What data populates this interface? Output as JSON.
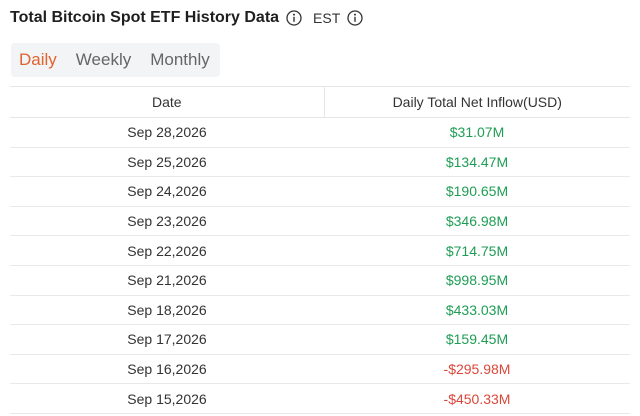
{
  "header": {
    "title": "Total Bitcoin Spot ETF History Data",
    "timezone": "EST"
  },
  "tabs": [
    {
      "label": "Daily",
      "active": true
    },
    {
      "label": "Weekly",
      "active": false
    },
    {
      "label": "Monthly",
      "active": false
    }
  ],
  "table": {
    "columns": [
      "Date",
      "Daily Total Net Inflow(USD)"
    ],
    "rows": [
      {
        "date": "Sep 28,2026",
        "inflow": "$31.07M",
        "sign": "positive"
      },
      {
        "date": "Sep 25,2026",
        "inflow": "$134.47M",
        "sign": "positive"
      },
      {
        "date": "Sep 24,2026",
        "inflow": "$190.65M",
        "sign": "positive"
      },
      {
        "date": "Sep 23,2026",
        "inflow": "$346.98M",
        "sign": "positive"
      },
      {
        "date": "Sep 22,2026",
        "inflow": "$714.75M",
        "sign": "positive"
      },
      {
        "date": "Sep 21,2026",
        "inflow": "$998.95M",
        "sign": "positive"
      },
      {
        "date": "Sep 18,2026",
        "inflow": "$433.03M",
        "sign": "positive"
      },
      {
        "date": "Sep 17,2026",
        "inflow": "$159.45M",
        "sign": "positive"
      },
      {
        "date": "Sep 16,2026",
        "inflow": "-$295.98M",
        "sign": "negative"
      },
      {
        "date": "Sep 15,2026",
        "inflow": "-$450.33M",
        "sign": "negative"
      }
    ]
  },
  "colors": {
    "accent": "#e0632f",
    "positive": "#1f9d55",
    "negative": "#d9483b"
  },
  "icons": [
    "info-circle-icon",
    "info-circle-icon"
  ]
}
